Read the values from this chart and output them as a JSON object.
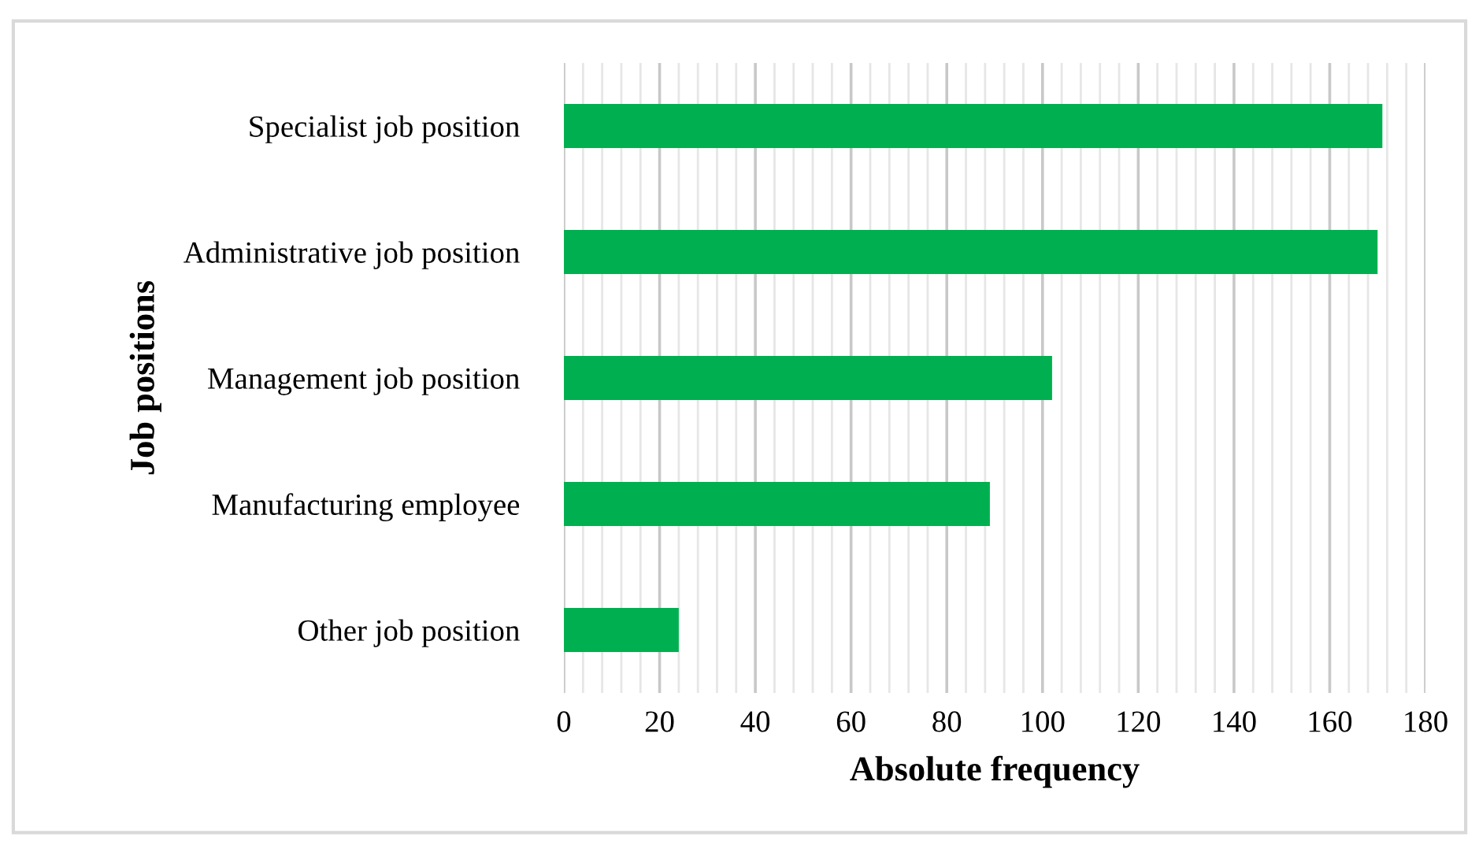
{
  "chart_data": {
    "type": "bar",
    "orientation": "horizontal",
    "xlabel": "Absolute frequency",
    "ylabel": "Job positions",
    "categories": [
      "Specialist job position",
      "Administrative job position",
      "Management job position",
      "Manufacturing employee",
      "Other job position"
    ],
    "values": [
      171,
      170,
      102,
      89,
      24
    ],
    "color": "#00b050",
    "xlim": [
      0,
      180
    ],
    "xticks": [
      0,
      20,
      40,
      60,
      80,
      100,
      120,
      140,
      160,
      180
    ],
    "grid": "x"
  }
}
